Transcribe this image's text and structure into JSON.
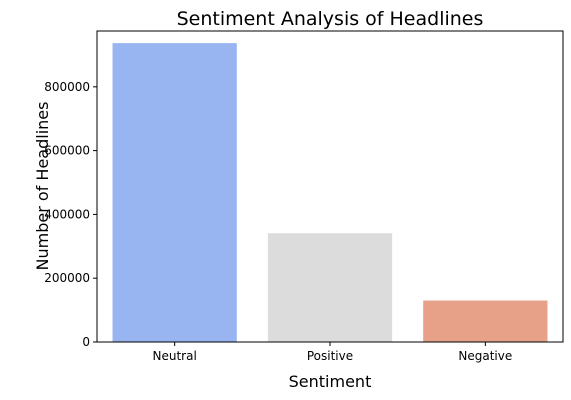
{
  "chart_data": {
    "type": "bar",
    "title": "Sentiment Analysis of Headlines",
    "xlabel": "Sentiment",
    "ylabel": "Number of Headlines",
    "categories": [
      "Neutral",
      "Positive",
      "Negative"
    ],
    "values": [
      937000,
      341000,
      130000
    ],
    "colors": [
      "#98b5f2",
      "#dcdcdc",
      "#e6a188"
    ],
    "ylim": [
      0,
      975000
    ],
    "yticks": [
      0,
      200000,
      400000,
      600000,
      800000
    ],
    "ytick_labels": [
      "0",
      "200000",
      "400000",
      "600000",
      "800000"
    ],
    "grid": false,
    "legend": "none"
  }
}
